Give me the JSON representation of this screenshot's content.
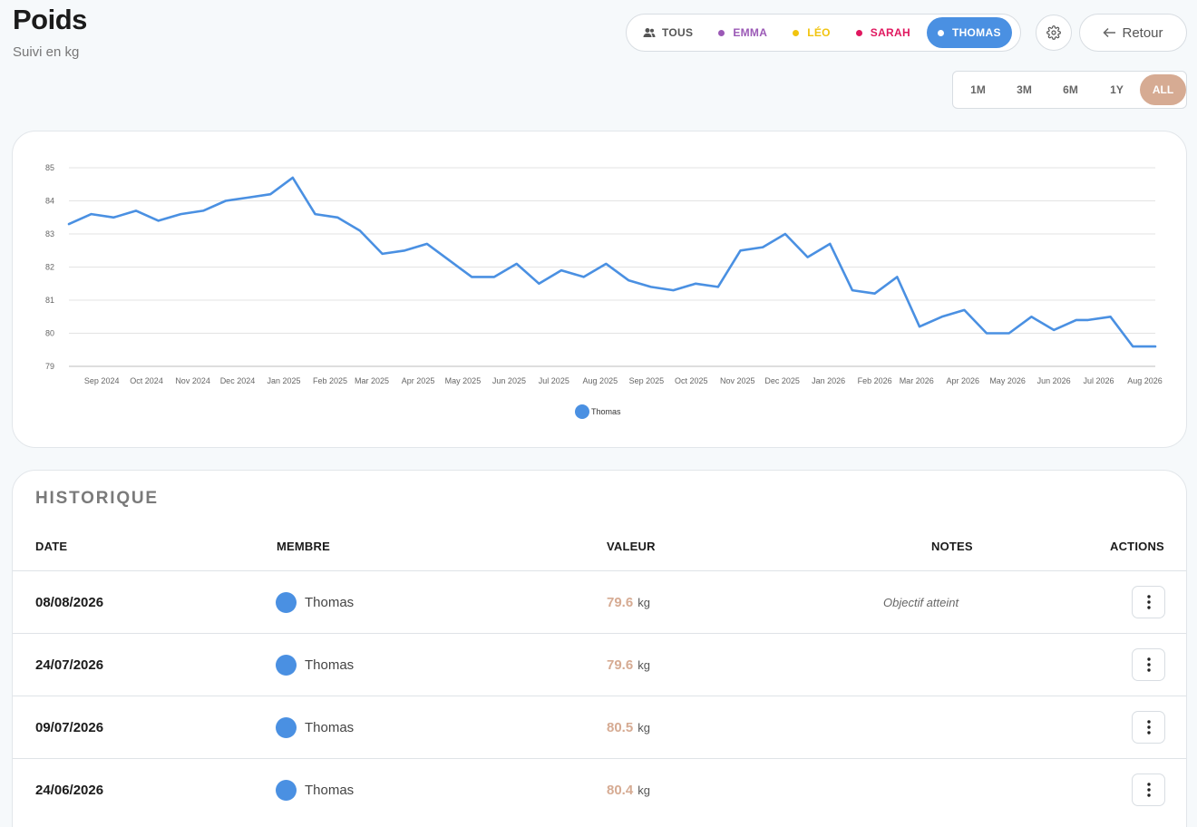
{
  "header": {
    "title": "Poids",
    "subtitle": "Suivi en kg"
  },
  "member_filter": {
    "options": [
      {
        "label": "TOUS",
        "color": "#555555",
        "icon": "people-icon",
        "active": false
      },
      {
        "label": "EMMA",
        "color": "#9b59b6",
        "active": false
      },
      {
        "label": "LÉO",
        "color": "#f1c40f",
        "active": false
      },
      {
        "label": "SARAH",
        "color": "#e0185f",
        "active": false
      },
      {
        "label": "THOMAS",
        "color": "#4a90e2",
        "active": true
      }
    ]
  },
  "settings": {
    "icon": "gear-icon"
  },
  "back_button": {
    "label": "Retour",
    "icon": "arrow-left-icon"
  },
  "range_filter": {
    "options": [
      "1M",
      "3M",
      "6M",
      "1Y",
      "ALL"
    ],
    "active": "ALL",
    "active_color": "#d6ab93"
  },
  "chart_data": {
    "type": "line",
    "x": [
      "2024-08-10",
      "2024-08-25",
      "2024-09-09",
      "2024-09-24",
      "2024-10-09",
      "2024-10-24",
      "2024-11-08",
      "2024-11-23",
      "2024-12-08",
      "2024-12-23",
      "2025-01-07",
      "2025-01-22",
      "2025-02-06",
      "2025-02-21",
      "2025-03-08",
      "2025-03-23",
      "2025-04-07",
      "2025-04-22",
      "2025-05-07",
      "2025-05-22",
      "2025-06-06",
      "2025-06-21",
      "2025-07-06",
      "2025-07-21",
      "2025-08-05",
      "2025-08-20",
      "2025-09-04",
      "2025-09-19",
      "2025-10-04",
      "2025-10-19",
      "2025-11-03",
      "2025-11-18",
      "2025-12-03",
      "2025-12-18",
      "2026-01-02",
      "2026-01-17",
      "2026-02-01",
      "2026-02-16",
      "2026-03-03",
      "2026-03-18",
      "2026-04-02",
      "2026-04-17",
      "2026-05-02",
      "2026-05-17",
      "2026-06-01",
      "2026-06-16",
      "2026-06-24",
      "2026-07-09",
      "2026-07-24",
      "2026-08-08"
    ],
    "series": [
      {
        "name": "Thomas",
        "color": "#4a90e2",
        "values": [
          83.3,
          83.6,
          83.5,
          83.7,
          83.4,
          83.6,
          83.7,
          84.0,
          84.1,
          84.2,
          84.7,
          83.6,
          83.5,
          83.1,
          82.4,
          82.5,
          82.7,
          82.2,
          81.7,
          81.7,
          82.1,
          81.5,
          81.9,
          81.7,
          82.1,
          81.6,
          81.4,
          81.3,
          81.5,
          81.4,
          82.5,
          82.6,
          83.0,
          82.3,
          82.7,
          81.3,
          81.2,
          81.7,
          80.2,
          80.5,
          80.7,
          80.0,
          80.0,
          80.5,
          80.1,
          80.4,
          80.4,
          80.5,
          79.6,
          79.6
        ]
      }
    ],
    "xticks": [
      "Sep 2024",
      "Oct 2024",
      "Nov 2024",
      "Dec 2024",
      "Jan 2025",
      "Feb 2025",
      "Mar 2025",
      "Apr 2025",
      "May 2025",
      "Jun 2025",
      "Jul 2025",
      "Aug 2025",
      "Sep 2025",
      "Oct 2025",
      "Nov 2025",
      "Dec 2025",
      "Jan 2026",
      "Feb 2026",
      "Mar 2026",
      "Apr 2026",
      "May 2026",
      "Jun 2026",
      "Jul 2026",
      "Aug 2026"
    ],
    "yticks": [
      79,
      80,
      81,
      82,
      83,
      84,
      85
    ],
    "ylim": [
      79,
      85
    ],
    "grid": true,
    "legend": "bottom-center"
  },
  "history": {
    "title": "HISTORIQUE",
    "columns": {
      "date": "DATE",
      "member": "MEMBRE",
      "value": "VALEUR",
      "notes": "NOTES",
      "actions": "ACTIONS"
    },
    "value_color": "#d6ab93",
    "rows": [
      {
        "date": "08/08/2026",
        "member": "Thomas",
        "value": "79.6",
        "unit": "kg",
        "note": "Objectif atteint",
        "avatar_color": "#4a90e2"
      },
      {
        "date": "24/07/2026",
        "member": "Thomas",
        "value": "79.6",
        "unit": "kg",
        "note": "",
        "avatar_color": "#4a90e2"
      },
      {
        "date": "09/07/2026",
        "member": "Thomas",
        "value": "80.5",
        "unit": "kg",
        "note": "",
        "avatar_color": "#4a90e2"
      },
      {
        "date": "24/06/2026",
        "member": "Thomas",
        "value": "80.4",
        "unit": "kg",
        "note": "",
        "avatar_color": "#4a90e2"
      }
    ]
  }
}
